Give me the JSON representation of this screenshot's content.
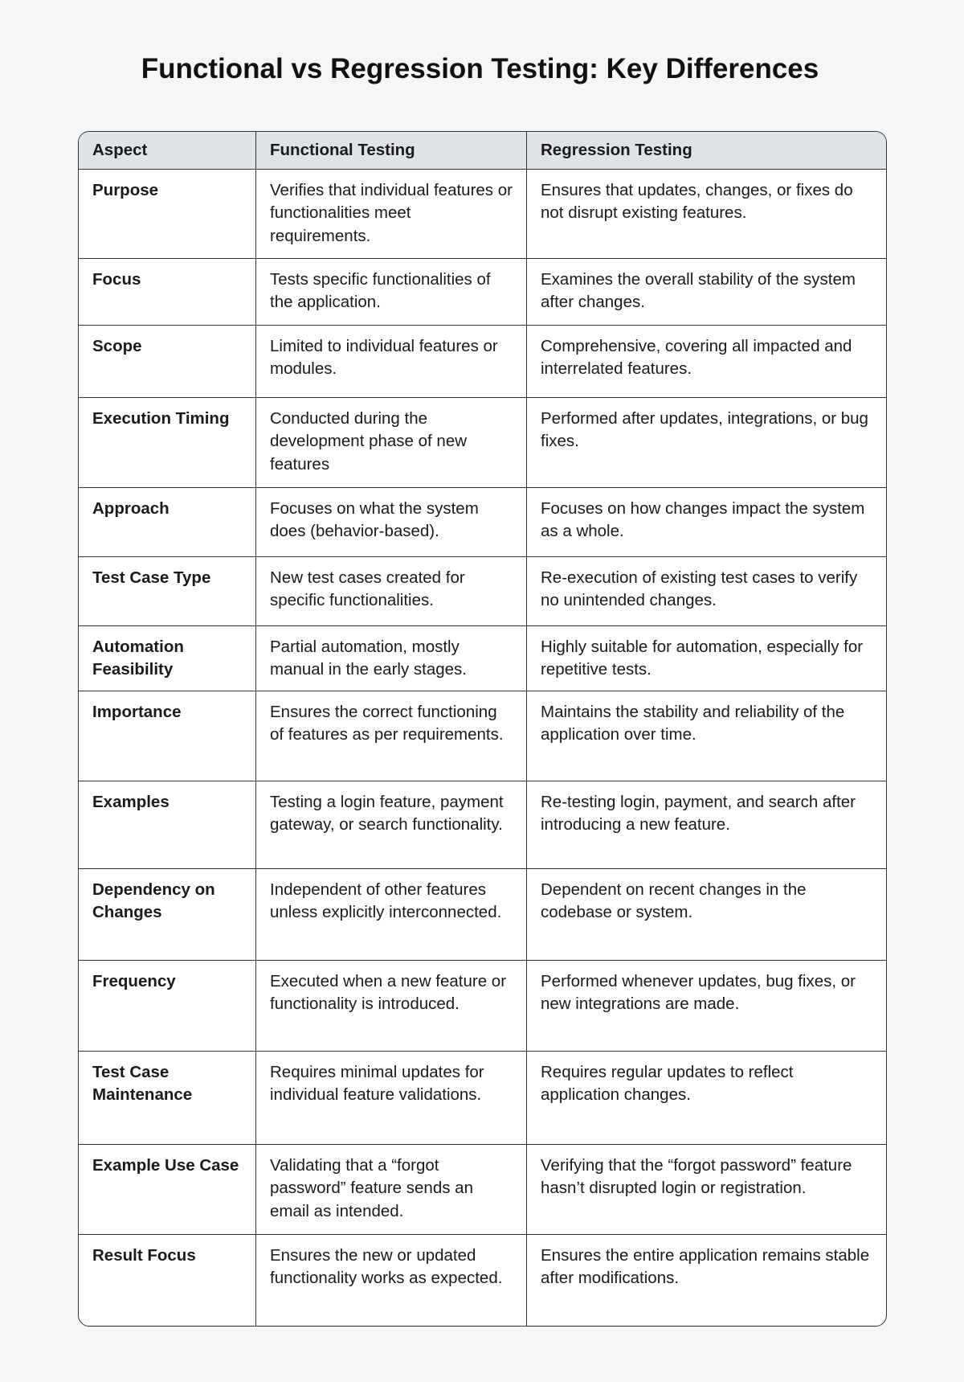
{
  "title": "Functional vs Regression Testing: Key Differences",
  "table": {
    "headers": [
      "Aspect",
      "Functional Testing",
      "Regression Testing"
    ],
    "rows": [
      [
        "Purpose",
        "Verifies that individual features or functionalities meet requirements.",
        "Ensures that updates, changes, or fixes do not disrupt existing features."
      ],
      [
        "Focus",
        "Tests specific functionalities of the application.",
        "Examines the overall stability of the system after changes."
      ],
      [
        "Scope",
        "Limited to individual features or modules.",
        "Comprehensive, covering all impacted and interrelated features."
      ],
      [
        "Execution Timing",
        "Conducted during the development phase of new features",
        "Performed after updates, integrations, or bug fixes."
      ],
      [
        "Approach",
        "Focuses on what the system does (behavior-based).",
        "Focuses on how changes impact the system as a whole."
      ],
      [
        "Test Case Type",
        "New test cases created for specific functionalities.",
        "Re-execution of existing test cases to verify no unintended changes."
      ],
      [
        "Automation Feasibility",
        "Partial automation, mostly manual in the early stages.",
        "Highly suitable for automation, especially for repetitive tests."
      ],
      [
        "Importance",
        "Ensures the correct functioning of features as per requirements.",
        "Maintains the stability and reliability of the application over time."
      ],
      [
        "Examples",
        "Testing a login feature, payment gateway, or search functionality.",
        "Re-testing login, payment, and search after introducing a new feature."
      ],
      [
        "Dependency on Changes",
        "Independent of other features unless explicitly interconnected.",
        "Dependent on recent changes in the codebase or system."
      ],
      [
        "Frequency",
        "Executed when a new feature or functionality is introduced.",
        "Performed whenever updates, bug fixes, or new integrations are made."
      ],
      [
        "Test Case Maintenance",
        "Requires minimal updates for individual feature validations.",
        "Requires regular updates to reflect application changes."
      ],
      [
        "Example Use Case",
        "Validating that a “forgot password” feature sends an email as intended.",
        "Verifying that the “forgot password” feature hasn’t disrupted login or registration."
      ],
      [
        "Result Focus",
        "Ensures the new or updated functionality works as expected.",
        "Ensures the entire application remains stable after modifications."
      ]
    ]
  }
}
